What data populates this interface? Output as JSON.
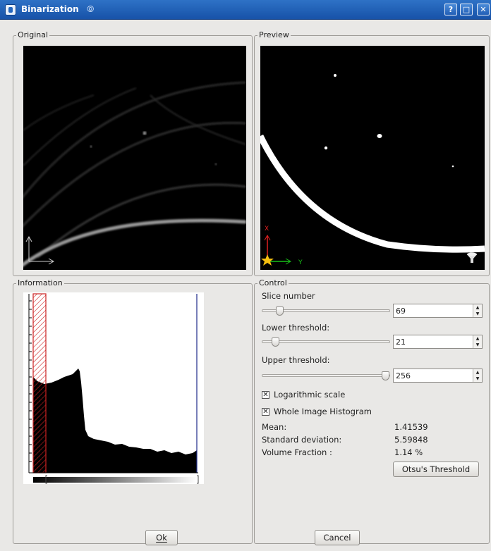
{
  "window": {
    "title": "Binarization",
    "help_label": "?",
    "max_label": "□",
    "close_label": "✕"
  },
  "original": {
    "group_label": "Original"
  },
  "preview": {
    "group_label": "Preview",
    "axis_x_label": "X",
    "axis_y_label": "Y"
  },
  "information": {
    "group_label": "Information"
  },
  "control": {
    "group_label": "Control",
    "slice_number_label": "Slice number",
    "slice_number_value": "69",
    "lower_threshold_label": "Lower threshold:",
    "lower_threshold_value": "21",
    "upper_threshold_label": "Upper threshold:",
    "upper_threshold_value": "256",
    "log_scale_label": "Logarithmic scale",
    "log_scale_checked": "✕",
    "whole_hist_label": "Whole Image Histogram",
    "whole_hist_checked": "✕",
    "mean_label": "Mean:",
    "mean_value": "1.41539",
    "std_label": "Standard deviation:",
    "std_value": "5.59848",
    "volume_label": "Volume Fraction :",
    "volume_value": "1.14 %",
    "otsu_label": "Otsu's Threshold"
  },
  "footer": {
    "ok_label": "Ok",
    "cancel_label": "Cancel"
  },
  "colors": {
    "title_bar": "#1e5fb5",
    "threshold_hatch": "#cc2222",
    "preview_mark": "#ffffff"
  }
}
